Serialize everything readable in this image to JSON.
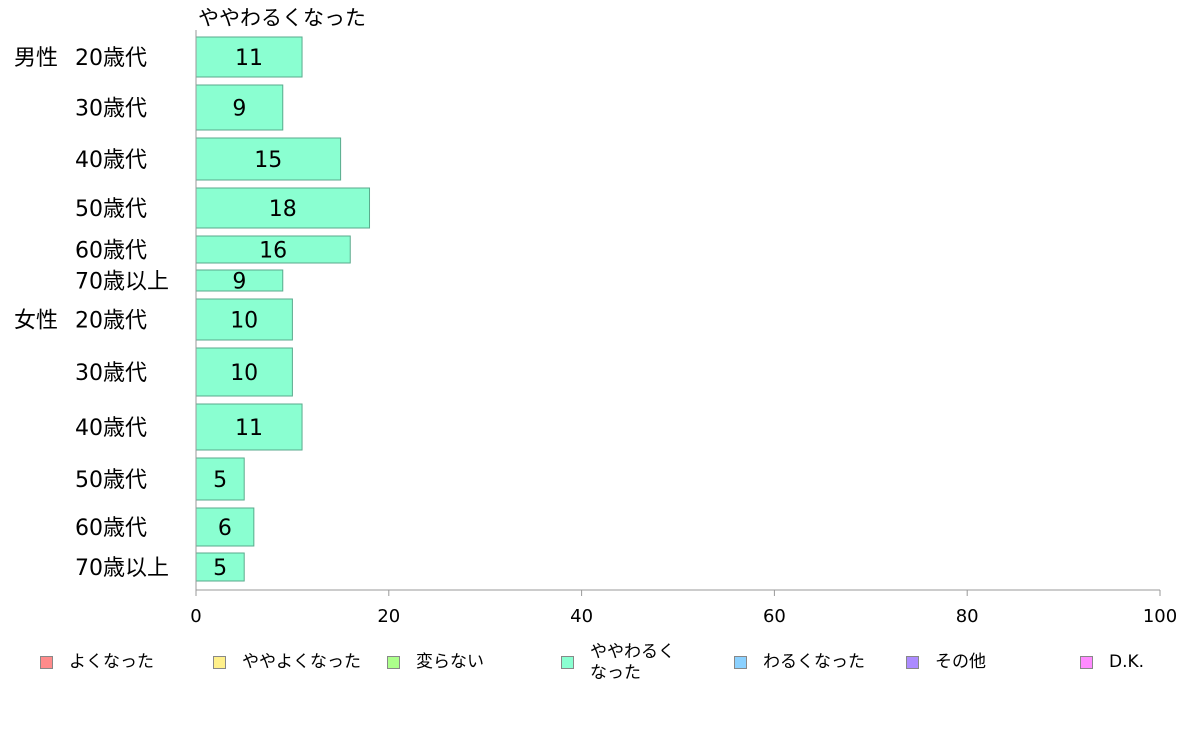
{
  "chart_data": {
    "type": "bar",
    "orientation": "horizontal",
    "title": "ややわるくなった",
    "groups": [
      {
        "label": "男性",
        "rows": [
          {
            "label": "20歳代",
            "value": 11
          },
          {
            "label": "30歳代",
            "value": 9
          },
          {
            "label": "40歳代",
            "value": 15
          },
          {
            "label": "50歳代",
            "value": 18
          },
          {
            "label": "60歳代",
            "value": 16
          },
          {
            "label": "70歳以上",
            "value": 9
          }
        ]
      },
      {
        "label": "女性",
        "rows": [
          {
            "label": "20歳代",
            "value": 10
          },
          {
            "label": "30歳代",
            "value": 10
          },
          {
            "label": "40歳代",
            "value": 11
          },
          {
            "label": "50歳代",
            "value": 5
          },
          {
            "label": "60歳代",
            "value": 6
          },
          {
            "label": "70歳以上",
            "value": 5
          }
        ]
      }
    ],
    "xlim": [
      0,
      100
    ],
    "xticks": [
      "0",
      "20",
      "40",
      "60",
      "80",
      "100"
    ],
    "bar_color": "#8affd1",
    "bar_border": "#5aaa8c",
    "grid": false,
    "legend_position": "bottom",
    "legend": [
      {
        "label": "よくなった",
        "color": "#ff8b8b"
      },
      {
        "label": "ややよくなった",
        "color": "#fff08b"
      },
      {
        "label": "変らない",
        "color": "#acff8b"
      },
      {
        "label": "ややわるく\nなった",
        "color": "#8affd1"
      },
      {
        "label": "わるくなった",
        "color": "#8bd1ff"
      },
      {
        "label": "その他",
        "color": "#ac8bff"
      },
      {
        "label": "D.K.",
        "color": "#ff8bff"
      }
    ]
  }
}
